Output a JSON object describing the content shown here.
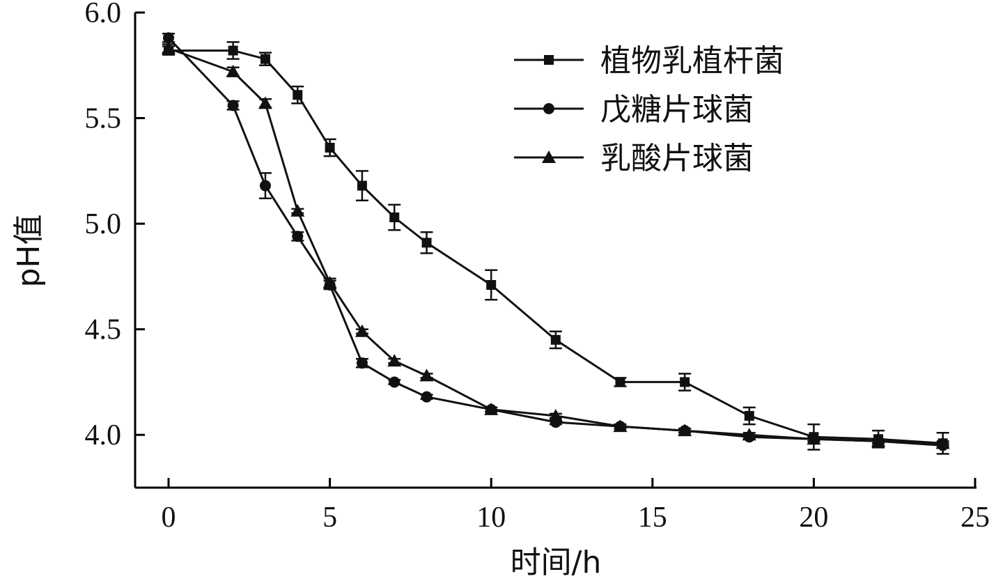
{
  "chart_data": {
    "type": "line",
    "title": "",
    "xlabel": "时间/h",
    "ylabel": "pH值",
    "xlim": [
      0,
      25
    ],
    "ylim": [
      3.75,
      6.0
    ],
    "xticks": [
      0,
      5,
      10,
      15,
      20,
      25
    ],
    "xtick_labels": [
      "0",
      "5",
      "10",
      "15",
      "20",
      "25"
    ],
    "yticks": [
      4.0,
      4.5,
      5.0,
      5.5,
      6.0
    ],
    "ytick_labels": [
      "4.0",
      "4.5",
      "5.0",
      "5.5",
      "6.0"
    ],
    "grid": false,
    "legend_position": "top-right",
    "series": [
      {
        "name": "植物乳植杆菌",
        "marker": "square",
        "x": [
          0,
          2,
          3,
          4,
          5,
          6,
          7,
          8,
          10,
          12,
          14,
          16,
          18,
          20,
          22,
          24
        ],
        "y": [
          5.82,
          5.82,
          5.78,
          5.61,
          5.36,
          5.18,
          5.03,
          4.91,
          4.71,
          4.45,
          4.25,
          4.25,
          4.09,
          3.99,
          3.98,
          3.96
        ],
        "err": [
          0.02,
          0.04,
          0.03,
          0.04,
          0.04,
          0.07,
          0.06,
          0.05,
          0.07,
          0.04,
          0.02,
          0.04,
          0.04,
          0.06,
          0.04,
          0.05
        ]
      },
      {
        "name": "戊糖片球菌",
        "marker": "circle",
        "x": [
          0,
          2,
          3,
          4,
          5,
          6,
          7,
          8,
          10,
          12,
          14,
          16,
          18,
          20,
          22,
          24
        ],
        "y": [
          5.88,
          5.56,
          5.18,
          4.94,
          4.71,
          4.34,
          4.25,
          4.18,
          4.12,
          4.06,
          4.04,
          4.02,
          3.99,
          3.98,
          3.97,
          3.95
        ],
        "err": [
          0.02,
          0.02,
          0.06,
          0.02,
          0.02,
          0.02,
          0.01,
          0.01,
          0.01,
          0.01,
          0.01,
          0.01,
          0.01,
          0.01,
          0.01,
          0.01
        ]
      },
      {
        "name": "乳酸片球菌",
        "marker": "triangle",
        "x": [
          0,
          2,
          3,
          4,
          5,
          6,
          7,
          8,
          10,
          12,
          14,
          16,
          18,
          20,
          22,
          24
        ],
        "y": [
          5.83,
          5.72,
          5.57,
          5.06,
          4.72,
          4.49,
          4.35,
          4.28,
          4.12,
          4.09,
          4.04,
          4.02,
          4.0,
          3.98,
          3.97,
          3.96
        ],
        "err": [
          0.02,
          0.02,
          0.02,
          0.01,
          0.02,
          0.01,
          0.01,
          0.01,
          0.01,
          0.01,
          0.01,
          0.01,
          0.01,
          0.01,
          0.01,
          0.01
        ]
      }
    ]
  }
}
